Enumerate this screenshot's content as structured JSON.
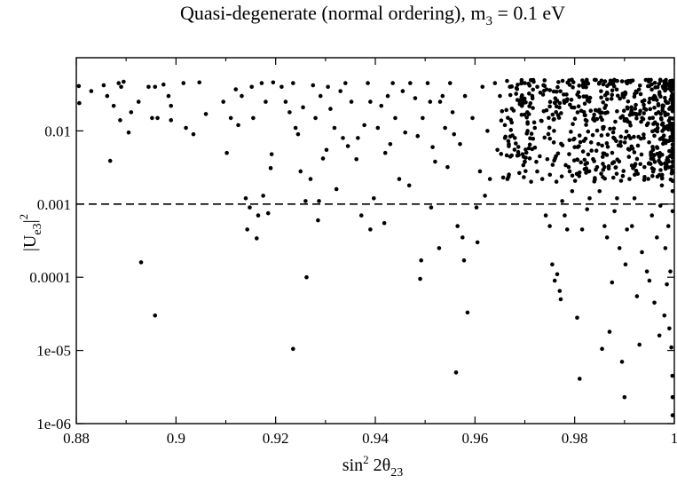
{
  "chart_data": {
    "type": "scatter",
    "title": {
      "prefix": "Quasi-degenerate (normal ordering), m",
      "sub": "3",
      "suffix": " = 0.1 eV"
    },
    "xlabel": {
      "sin": "sin",
      "sup": "2",
      "mid": " 2θ",
      "sub": "23"
    },
    "ylabel": {
      "main": "|U",
      "sub": "e3",
      "close": "|",
      "sup": "2"
    },
    "x_scale": "linear",
    "y_scale": "log",
    "xlim": [
      0.88,
      1.0
    ],
    "ylim": [
      1e-06,
      0.1
    ],
    "x_ticks": [
      {
        "value": 0.88,
        "label": "0.88"
      },
      {
        "value": 0.9,
        "label": "0.9"
      },
      {
        "value": 0.92,
        "label": "0.92"
      },
      {
        "value": 0.94,
        "label": "0.94"
      },
      {
        "value": 0.96,
        "label": "0.96"
      },
      {
        "value": 0.98,
        "label": "0.98"
      },
      {
        "value": 1.0,
        "label": "1"
      }
    ],
    "y_ticks": [
      {
        "value": 1e-06,
        "label": "1e-06"
      },
      {
        "value": 1e-05,
        "label": "1e-05"
      },
      {
        "value": 0.0001,
        "label": "0.0001"
      },
      {
        "value": 0.001,
        "label": "0.001"
      },
      {
        "value": 0.01,
        "label": "0.01"
      }
    ],
    "reference_line": {
      "y": 0.001,
      "style": "dashed"
    },
    "grid": false,
    "series": [
      {
        "name": "points",
        "marker": "filled-circle",
        "points": [
          [
            0.8805,
            0.041
          ],
          [
            0.8806,
            0.024
          ],
          [
            0.883,
            0.035
          ],
          [
            0.8855,
            0.042
          ],
          [
            0.8862,
            0.03
          ],
          [
            0.8868,
            0.0039
          ],
          [
            0.8875,
            0.022
          ],
          [
            0.8885,
            0.045
          ],
          [
            0.8888,
            0.014
          ],
          [
            0.889,
            0.04
          ],
          [
            0.8895,
            0.047
          ],
          [
            0.8905,
            0.0095
          ],
          [
            0.891,
            0.018
          ],
          [
            0.8925,
            0.025
          ],
          [
            0.893,
            0.00016
          ],
          [
            0.8945,
            0.04
          ],
          [
            0.8952,
            0.015
          ],
          [
            0.8958,
            0.04
          ],
          [
            0.8958,
            3e-05
          ],
          [
            0.8963,
            0.015
          ],
          [
            0.8975,
            0.043
          ],
          [
            0.8985,
            0.03
          ],
          [
            0.899,
            0.022
          ],
          [
            0.899,
            0.014
          ],
          [
            0.9015,
            0.045
          ],
          [
            0.902,
            0.011
          ],
          [
            0.9035,
            0.009
          ],
          [
            0.9047,
            0.046
          ],
          [
            0.906,
            0.017
          ],
          [
            0.9095,
            0.025
          ],
          [
            0.9102,
            0.005
          ],
          [
            0.911,
            0.015
          ],
          [
            0.912,
            0.037
          ],
          [
            0.9125,
            0.012
          ],
          [
            0.9132,
            0.03
          ],
          [
            0.914,
            0.0012
          ],
          [
            0.9143,
            0.00045
          ],
          [
            0.9148,
            0.0009
          ],
          [
            0.9152,
            0.04
          ],
          [
            0.9155,
            0.015
          ],
          [
            0.9162,
            0.00034
          ],
          [
            0.9165,
            0.0007
          ],
          [
            0.9172,
            0.045
          ],
          [
            0.9175,
            0.0013
          ],
          [
            0.918,
            0.025
          ],
          [
            0.9185,
            0.00075
          ],
          [
            0.919,
            0.0031
          ],
          [
            0.9192,
            0.0048
          ],
          [
            0.9195,
            0.046
          ],
          [
            0.9212,
            0.04
          ],
          [
            0.922,
            0.025
          ],
          [
            0.9228,
            0.018
          ],
          [
            0.9235,
            0.045
          ],
          [
            0.9235,
            1.05e-05
          ],
          [
            0.924,
            0.011
          ],
          [
            0.9245,
            0.009
          ],
          [
            0.925,
            0.0028
          ],
          [
            0.9255,
            0.021
          ],
          [
            0.926,
            0.0011
          ],
          [
            0.9262,
            0.0001
          ],
          [
            0.927,
            0.0022
          ],
          [
            0.9275,
            0.042
          ],
          [
            0.928,
            0.015
          ],
          [
            0.9285,
            0.0006
          ],
          [
            0.9287,
            0.0011
          ],
          [
            0.929,
            0.03
          ],
          [
            0.9295,
            0.0042
          ],
          [
            0.9302,
            0.0055
          ],
          [
            0.9305,
            0.04
          ],
          [
            0.931,
            0.02
          ],
          [
            0.9318,
            0.011
          ],
          [
            0.9322,
            0.0016
          ],
          [
            0.933,
            0.035
          ],
          [
            0.9335,
            0.008
          ],
          [
            0.934,
            0.045
          ],
          [
            0.9345,
            0.0062
          ],
          [
            0.9352,
            0.025
          ],
          [
            0.9362,
            0.0041
          ],
          [
            0.9365,
            0.008
          ],
          [
            0.9372,
            0.0007
          ],
          [
            0.9378,
            0.012
          ],
          [
            0.9385,
            0.045
          ],
          [
            0.939,
            0.025
          ],
          [
            0.939,
            0.00045
          ],
          [
            0.9397,
            0.0012
          ],
          [
            0.9405,
            0.011
          ],
          [
            0.9412,
            0.022
          ],
          [
            0.9418,
            0.00055
          ],
          [
            0.942,
            0.005
          ],
          [
            0.9425,
            0.03
          ],
          [
            0.943,
            0.0066
          ],
          [
            0.9435,
            0.045
          ],
          [
            0.944,
            0.015
          ],
          [
            0.9448,
            0.0022
          ],
          [
            0.9455,
            0.035
          ],
          [
            0.946,
            0.0095
          ],
          [
            0.9468,
            0.0018
          ],
          [
            0.947,
            0.045
          ],
          [
            0.948,
            0.028
          ],
          [
            0.9485,
            0.0085
          ],
          [
            0.949,
            9.5e-05
          ],
          [
            0.9492,
            0.00017
          ],
          [
            0.9495,
            0.015
          ],
          [
            0.9505,
            0.045
          ],
          [
            0.951,
            0.025
          ],
          [
            0.9512,
            0.0009
          ],
          [
            0.9515,
            0.006
          ],
          [
            0.952,
            0.0038
          ],
          [
            0.9528,
            0.00025
          ],
          [
            0.953,
            0.025
          ],
          [
            0.9535,
            0.03
          ],
          [
            0.954,
            0.011
          ],
          [
            0.9545,
            0.0032
          ],
          [
            0.955,
            0.045
          ],
          [
            0.9555,
            0.018
          ],
          [
            0.9558,
            0.009
          ],
          [
            0.9562,
            5e-06
          ],
          [
            0.9565,
            0.0005
          ],
          [
            0.957,
            0.0066
          ],
          [
            0.9575,
            0.00035
          ],
          [
            0.9578,
            0.00017
          ],
          [
            0.958,
            0.03
          ],
          [
            0.9585,
            3.3e-05
          ],
          [
            0.9595,
            0.015
          ],
          [
            0.9603,
            0.0009
          ],
          [
            0.9605,
            0.0003
          ],
          [
            0.961,
            0.0028
          ],
          [
            0.9615,
            0.04
          ],
          [
            0.962,
            0.0013
          ],
          [
            0.9625,
            0.01
          ],
          [
            0.963,
            0.0022
          ],
          [
            0.964,
            0.045
          ],
          [
            0.9645,
            0.0055
          ],
          [
            0.965,
            0.03
          ],
          [
            0.966,
            0.012
          ],
          [
            0.9665,
            0.0022
          ],
          [
            0.967,
            0.04
          ],
          [
            0.968,
            0.008
          ],
          [
            0.9685,
            0.0046
          ],
          [
            0.969,
            0.025
          ],
          [
            0.97,
            0.045
          ],
          [
            0.9705,
            0.018
          ],
          [
            0.971,
            0.0065
          ],
          [
            0.9715,
            0.03
          ],
          [
            0.972,
            0.011
          ],
          [
            0.9725,
            0.04
          ],
          [
            0.973,
            0.0045
          ],
          [
            0.9735,
            0.0022
          ],
          [
            0.9742,
            0.0007
          ],
          [
            0.975,
            0.0005
          ],
          [
            0.9755,
            0.00015
          ],
          [
            0.976,
            9e-05
          ],
          [
            0.9765,
            0.00011
          ],
          [
            0.977,
            6.5e-05
          ],
          [
            0.9772,
            5e-05
          ],
          [
            0.9775,
            0.0011
          ],
          [
            0.978,
            0.0007
          ],
          [
            0.9785,
            0.00045
          ],
          [
            0.979,
            0.0028
          ],
          [
            0.9795,
            0.0015
          ],
          [
            0.98,
            0.006
          ],
          [
            0.9805,
            2.8e-05
          ],
          [
            0.981,
            4.1e-06
          ],
          [
            0.9815,
            0.00045
          ],
          [
            0.982,
            0.003
          ],
          [
            0.9825,
            0.00085
          ],
          [
            0.983,
            0.0012
          ],
          [
            0.9838,
            0.015
          ],
          [
            0.9845,
            0.0032
          ],
          [
            0.985,
            0.0015
          ],
          [
            0.9855,
            1.05e-05
          ],
          [
            0.986,
            0.0005
          ],
          [
            0.9865,
            0.00035
          ],
          [
            0.987,
            1.8e-05
          ],
          [
            0.9875,
            8.5e-05
          ],
          [
            0.988,
            0.0008
          ],
          [
            0.9885,
            0.0012
          ],
          [
            0.989,
            0.00025
          ],
          [
            0.9895,
            7e-06
          ],
          [
            0.99,
            2.3e-06
          ],
          [
            0.9902,
            0.00015
          ],
          [
            0.9905,
            0.00045
          ],
          [
            0.991,
            0.0022
          ],
          [
            0.9915,
            0.0005
          ],
          [
            0.992,
            0.0012
          ],
          [
            0.9925,
            5.5e-05
          ],
          [
            0.993,
            1.2e-05
          ],
          [
            0.9935,
            0.00022
          ],
          [
            0.994,
            0.0032
          ],
          [
            0.9945,
            0.00012
          ],
          [
            0.995,
            9e-05
          ],
          [
            0.9955,
            0.0007
          ],
          [
            0.996,
            4.5e-05
          ],
          [
            0.9965,
            0.00035
          ],
          [
            0.997,
            1.6e-05
          ],
          [
            0.9972,
            0.00095
          ],
          [
            0.9975,
            0.0018
          ],
          [
            0.998,
            3e-05
          ],
          [
            0.9982,
            0.00025
          ],
          [
            0.9985,
            8e-05
          ],
          [
            0.9988,
            0.0005
          ],
          [
            0.999,
            2e-05
          ],
          [
            0.9992,
            0.00012
          ],
          [
            0.9994,
            1.1e-05
          ],
          [
            0.9996,
            4.5e-06
          ],
          [
            0.9997,
            2.3e-06
          ],
          [
            0.9998,
            1.3e-06
          ],
          [
            0.9999,
            0.0008
          ],
          [
            0.9985,
            0.004
          ],
          [
            0.9975,
            0.008
          ],
          [
            0.999,
            0.02
          ],
          [
            0.996,
            0.03
          ],
          [
            0.9995,
            0.045
          ],
          [
            0.9945,
            0.012
          ],
          [
            0.997,
            0.0025
          ],
          [
            0.9998,
            0.0015
          ],
          [
            0.9965,
            0.006
          ]
        ],
        "dense_region": {
          "x_min": 0.965,
          "x_max": 1.0,
          "y_min": 0.002,
          "y_max": 0.05,
          "count": 620
        }
      }
    ]
  }
}
